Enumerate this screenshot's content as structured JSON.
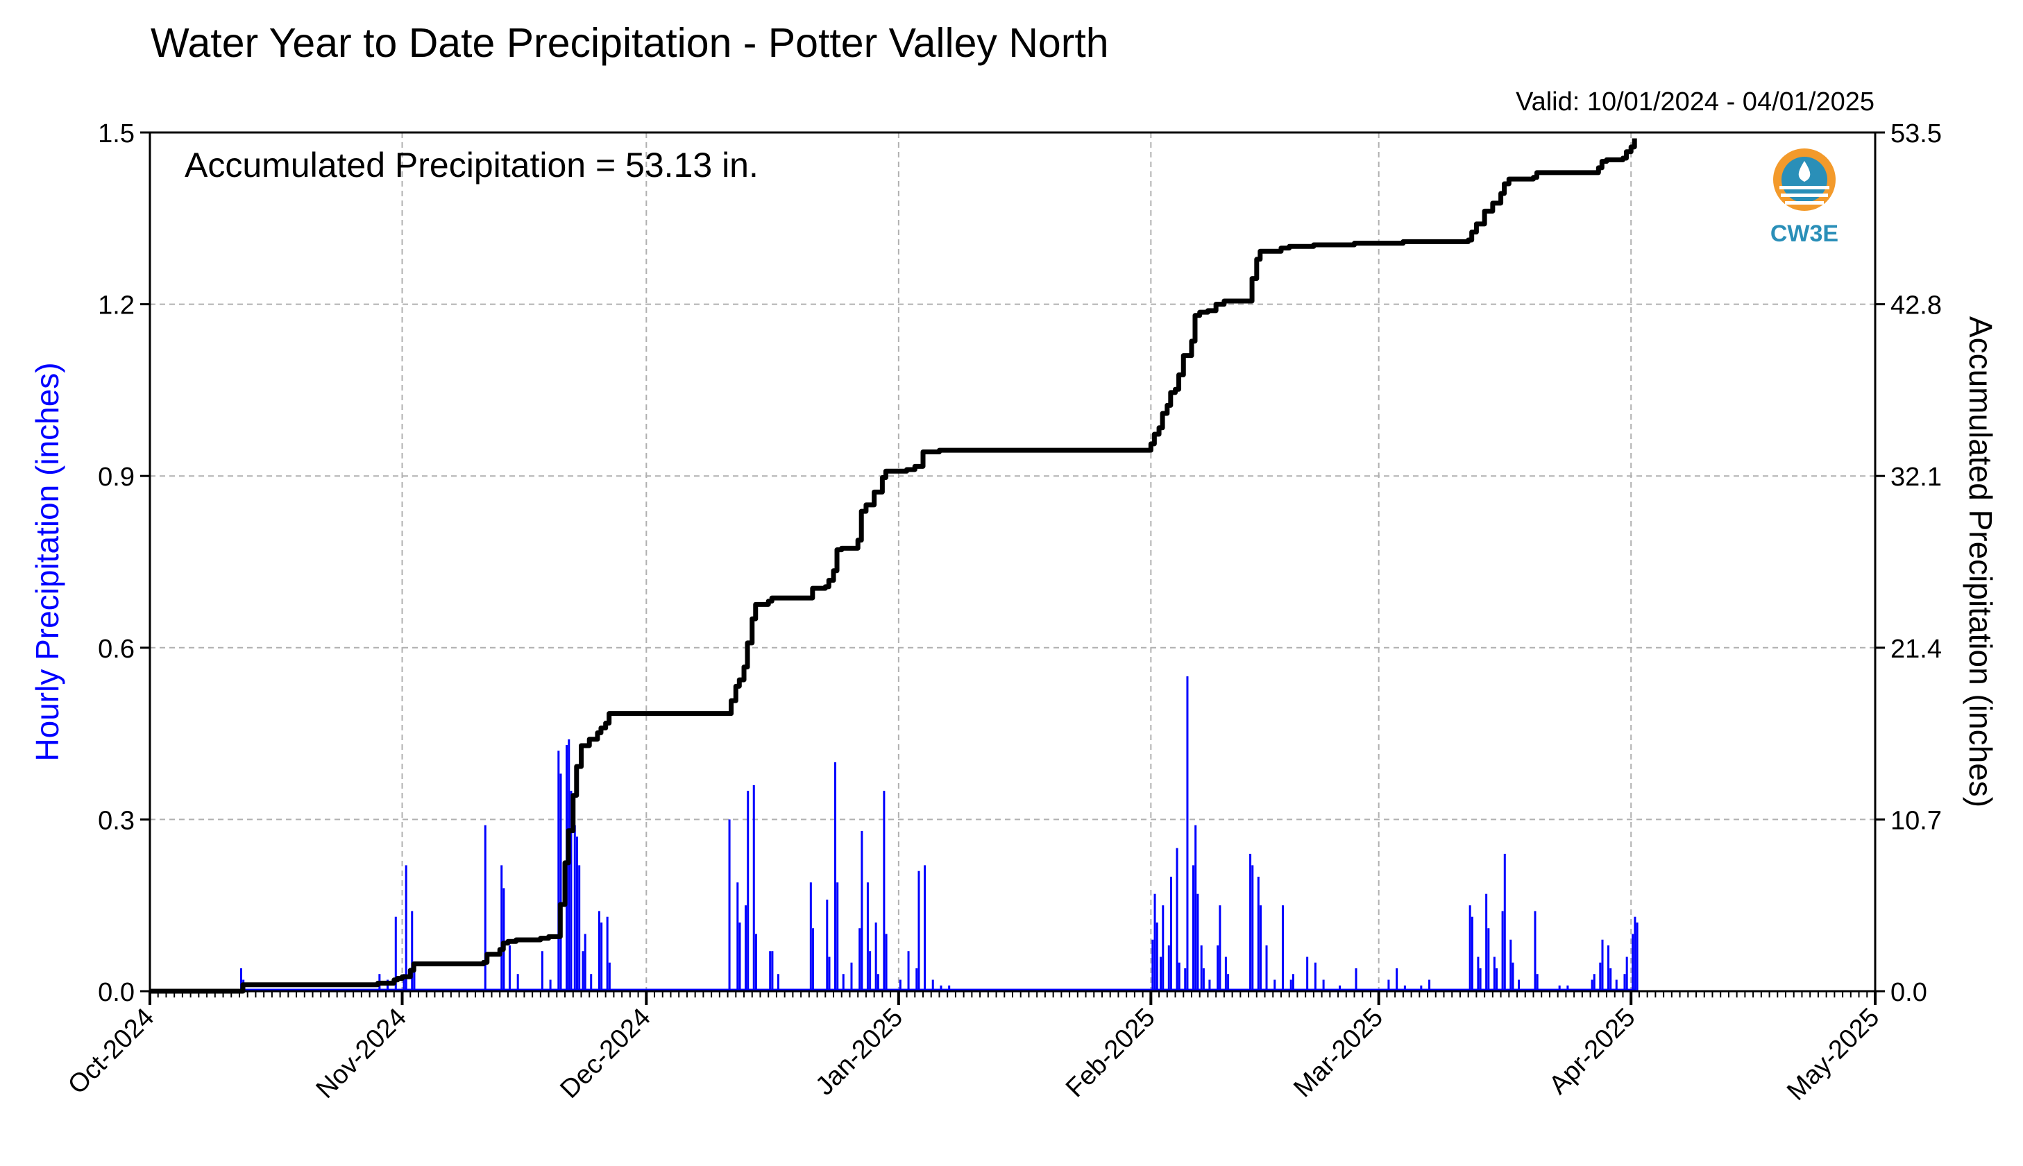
{
  "chart_data": {
    "type": "bar",
    "title": "Water Year to Date Precipitation - Potter Valley North",
    "subtitle": "Valid: 10/01/2024 - 04/01/2025",
    "annotation": "Accumulated Precipitation = 53.13 in.",
    "logo_text": "CW3E",
    "ylabel": "Hourly Precipitation (inches)",
    "y2label": "Accumulated Precipitation (inches)",
    "ylim": [
      0,
      1.5
    ],
    "y2lim": [
      0,
      53.5
    ],
    "yticks": [
      "0.0",
      "0.3",
      "0.6",
      "0.9",
      "1.2",
      "1.5"
    ],
    "y2ticks": [
      "0.0",
      "10.7",
      "21.4",
      "32.1",
      "42.8",
      "53.5"
    ],
    "x_start": "2024-10-01",
    "x_end": "2025-05-01",
    "month_labels": [
      "Oct-2024",
      "Nov-2024",
      "Dec-2024",
      "Jan-2025",
      "Feb-2025",
      "Mar-2025",
      "Apr-2025",
      "May-2025"
    ],
    "grid": true,
    "colors": {
      "hourly": "#0000ff",
      "accumulated": "#000000",
      "grid": "#b0b0b0",
      "logo_orange": "#f39a2b",
      "logo_blue": "#2a8fb8"
    },
    "series": [
      {
        "name": "Hourly Precipitation (inches)",
        "style": "bars",
        "points": [
          [
            "2024-10-12",
            0.04
          ],
          [
            "2024-10-12",
            0.02
          ],
          [
            "2024-10-29",
            0.03
          ],
          [
            "2024-10-30",
            0.02
          ],
          [
            "2024-10-31",
            0.13
          ],
          [
            "2024-11-01",
            0.03
          ],
          [
            "2024-11-01",
            0.22
          ],
          [
            "2024-11-02",
            0.14
          ],
          [
            "2024-11-02",
            0.05
          ],
          [
            "2024-11-11",
            0.29
          ],
          [
            "2024-11-13",
            0.22
          ],
          [
            "2024-11-13",
            0.18
          ],
          [
            "2024-11-14",
            0.08
          ],
          [
            "2024-11-15",
            0.03
          ],
          [
            "2024-11-18",
            0.07
          ],
          [
            "2024-11-19",
            0.02
          ],
          [
            "2024-11-20",
            0.42
          ],
          [
            "2024-11-20",
            0.38
          ],
          [
            "2024-11-21",
            0.43
          ],
          [
            "2024-11-21",
            0.44
          ],
          [
            "2024-11-21",
            0.35
          ],
          [
            "2024-11-22",
            0.29
          ],
          [
            "2024-11-22",
            0.27
          ],
          [
            "2024-11-22",
            0.22
          ],
          [
            "2024-11-23",
            0.07
          ],
          [
            "2024-11-23",
            0.1
          ],
          [
            "2024-11-24",
            0.03
          ],
          [
            "2024-11-25",
            0.14
          ],
          [
            "2024-11-25",
            0.12
          ],
          [
            "2024-11-26",
            0.13
          ],
          [
            "2024-11-26",
            0.05
          ],
          [
            "2024-12-11",
            0.3
          ],
          [
            "2024-12-12",
            0.19
          ],
          [
            "2024-12-12",
            0.12
          ],
          [
            "2024-12-13",
            0.15
          ],
          [
            "2024-12-13",
            0.35
          ],
          [
            "2024-12-14",
            0.36
          ],
          [
            "2024-12-14",
            0.1
          ],
          [
            "2024-12-16",
            0.07
          ],
          [
            "2024-12-16",
            0.07
          ],
          [
            "2024-12-17",
            0.03
          ],
          [
            "2024-12-21",
            0.19
          ],
          [
            "2024-12-21",
            0.11
          ],
          [
            "2024-12-23",
            0.16
          ],
          [
            "2024-12-23",
            0.06
          ],
          [
            "2024-12-24",
            0.4
          ],
          [
            "2024-12-24",
            0.19
          ],
          [
            "2024-12-25",
            0.03
          ],
          [
            "2024-12-26",
            0.05
          ],
          [
            "2024-12-27",
            0.11
          ],
          [
            "2024-12-27",
            0.28
          ],
          [
            "2024-12-28",
            0.19
          ],
          [
            "2024-12-28",
            0.07
          ],
          [
            "2024-12-29",
            0.12
          ],
          [
            "2024-12-29",
            0.03
          ],
          [
            "2024-12-30",
            0.35
          ],
          [
            "2024-12-30",
            0.1
          ],
          [
            "2025-01-01",
            0.02
          ],
          [
            "2025-01-02",
            0.07
          ],
          [
            "2025-01-03",
            0.04
          ],
          [
            "2025-01-03",
            0.21
          ],
          [
            "2025-01-04",
            0.22
          ],
          [
            "2025-01-05",
            0.02
          ],
          [
            "2025-01-06",
            0.01
          ],
          [
            "2025-01-07",
            0.01
          ],
          [
            "2025-02-01",
            0.09
          ],
          [
            "2025-02-01",
            0.17
          ],
          [
            "2025-02-01",
            0.12
          ],
          [
            "2025-02-02",
            0.06
          ],
          [
            "2025-02-02",
            0.15
          ],
          [
            "2025-02-03",
            0.08
          ],
          [
            "2025-02-03",
            0.2
          ],
          [
            "2025-02-04",
            0.25
          ],
          [
            "2025-02-04",
            0.05
          ],
          [
            "2025-02-05",
            0.04
          ],
          [
            "2025-02-05",
            0.55
          ],
          [
            "2025-02-06",
            0.22
          ],
          [
            "2025-02-06",
            0.29
          ],
          [
            "2025-02-06",
            0.17
          ],
          [
            "2025-02-07",
            0.08
          ],
          [
            "2025-02-07",
            0.04
          ],
          [
            "2025-02-08",
            0.02
          ],
          [
            "2025-02-09",
            0.08
          ],
          [
            "2025-02-09",
            0.15
          ],
          [
            "2025-02-10",
            0.06
          ],
          [
            "2025-02-10",
            0.03
          ],
          [
            "2025-02-13",
            0.24
          ],
          [
            "2025-02-13",
            0.22
          ],
          [
            "2025-02-14",
            0.2
          ],
          [
            "2025-02-14",
            0.15
          ],
          [
            "2025-02-15",
            0.08
          ],
          [
            "2025-02-16",
            0.02
          ],
          [
            "2025-02-17",
            0.15
          ],
          [
            "2025-02-18",
            0.02
          ],
          [
            "2025-02-18",
            0.03
          ],
          [
            "2025-02-20",
            0.06
          ],
          [
            "2025-02-21",
            0.05
          ],
          [
            "2025-02-22",
            0.02
          ],
          [
            "2025-02-24",
            0.01
          ],
          [
            "2025-02-26",
            0.04
          ],
          [
            "2025-03-02",
            0.02
          ],
          [
            "2025-03-03",
            0.04
          ],
          [
            "2025-03-04",
            0.01
          ],
          [
            "2025-03-06",
            0.01
          ],
          [
            "2025-03-07",
            0.02
          ],
          [
            "2025-03-12",
            0.15
          ],
          [
            "2025-03-12",
            0.13
          ],
          [
            "2025-03-13",
            0.06
          ],
          [
            "2025-03-13",
            0.04
          ],
          [
            "2025-03-14",
            0.17
          ],
          [
            "2025-03-14",
            0.11
          ],
          [
            "2025-03-15",
            0.06
          ],
          [
            "2025-03-15",
            0.04
          ],
          [
            "2025-03-16",
            0.14
          ],
          [
            "2025-03-16",
            0.24
          ],
          [
            "2025-03-17",
            0.09
          ],
          [
            "2025-03-17",
            0.05
          ],
          [
            "2025-03-18",
            0.02
          ],
          [
            "2025-03-20",
            0.14
          ],
          [
            "2025-03-20",
            0.03
          ],
          [
            "2025-03-23",
            0.01
          ],
          [
            "2025-03-24",
            0.01
          ],
          [
            "2025-03-27",
            0.02
          ],
          [
            "2025-03-27",
            0.03
          ],
          [
            "2025-03-28",
            0.05
          ],
          [
            "2025-03-28",
            0.09
          ],
          [
            "2025-03-29",
            0.08
          ],
          [
            "2025-03-29",
            0.04
          ],
          [
            "2025-03-30",
            0.02
          ],
          [
            "2025-03-31",
            0.03
          ],
          [
            "2025-03-31",
            0.06
          ],
          [
            "2025-04-01",
            0.1
          ],
          [
            "2025-04-01",
            0.13
          ],
          [
            "2025-04-01",
            0.12
          ]
        ]
      },
      {
        "name": "Accumulated Precipitation (inches)",
        "style": "line",
        "points": [
          [
            "2024-10-01",
            0
          ],
          [
            "2024-10-12",
            0.0
          ],
          [
            "2024-10-12",
            0.4
          ],
          [
            "2024-10-29",
            0.5
          ],
          [
            "2024-10-31",
            0.7
          ],
          [
            "2024-10-31",
            0.8
          ],
          [
            "2024-11-01",
            0.9
          ],
          [
            "2024-11-02",
            1.3
          ],
          [
            "2024-11-02",
            1.7
          ],
          [
            "2024-11-11",
            1.8
          ],
          [
            "2024-11-11",
            2.3
          ],
          [
            "2024-11-13",
            2.6
          ],
          [
            "2024-11-13",
            3.0
          ],
          [
            "2024-11-14",
            3.1
          ],
          [
            "2024-11-15",
            3.2
          ],
          [
            "2024-11-18",
            3.3
          ],
          [
            "2024-11-19",
            3.4
          ],
          [
            "2024-11-20",
            3.4
          ],
          [
            "2024-11-20",
            5.4
          ],
          [
            "2024-11-21",
            8.0
          ],
          [
            "2024-11-21",
            10.0
          ],
          [
            "2024-11-22",
            12.2
          ],
          [
            "2024-11-22",
            14.0
          ],
          [
            "2024-11-23",
            15.3
          ],
          [
            "2024-11-24",
            15.7
          ],
          [
            "2024-11-25",
            16.1
          ],
          [
            "2024-11-25",
            16.4
          ],
          [
            "2024-11-26",
            16.7
          ],
          [
            "2024-11-26",
            17.3
          ],
          [
            "2024-12-11",
            17.3
          ],
          [
            "2024-12-11",
            18.1
          ],
          [
            "2024-12-12",
            19.0
          ],
          [
            "2024-12-12",
            19.4
          ],
          [
            "2024-12-13",
            20.2
          ],
          [
            "2024-12-13",
            21.7
          ],
          [
            "2024-12-14",
            23.2
          ],
          [
            "2024-12-14",
            24.1
          ],
          [
            "2024-12-16",
            24.3
          ],
          [
            "2024-12-16",
            24.5
          ],
          [
            "2024-12-21",
            24.5
          ],
          [
            "2024-12-21",
            25.1
          ],
          [
            "2024-12-23",
            25.2
          ],
          [
            "2024-12-23",
            25.6
          ],
          [
            "2024-12-24",
            26.2
          ],
          [
            "2024-12-24",
            27.5
          ],
          [
            "2024-12-25",
            27.6
          ],
          [
            "2024-12-26",
            27.6
          ],
          [
            "2024-12-27",
            28.1
          ],
          [
            "2024-12-27",
            29.9
          ],
          [
            "2024-12-28",
            30.3
          ],
          [
            "2024-12-29",
            31.1
          ],
          [
            "2024-12-30",
            32.0
          ],
          [
            "2024-12-30",
            32.4
          ],
          [
            "2025-01-02",
            32.5
          ],
          [
            "2025-01-03",
            32.7
          ],
          [
            "2025-01-04",
            33.6
          ],
          [
            "2025-01-06",
            33.7
          ],
          [
            "2025-01-31",
            33.7
          ],
          [
            "2025-02-01",
            34.1
          ],
          [
            "2025-02-01",
            34.7
          ],
          [
            "2025-02-02",
            35.1
          ],
          [
            "2025-02-02",
            36.0
          ],
          [
            "2025-02-03",
            36.5
          ],
          [
            "2025-02-03",
            37.3
          ],
          [
            "2025-02-04",
            37.5
          ],
          [
            "2025-02-04",
            38.4
          ],
          [
            "2025-02-05",
            39.6
          ],
          [
            "2025-02-06",
            40.5
          ],
          [
            "2025-02-06",
            41.0
          ],
          [
            "2025-02-06",
            42.1
          ],
          [
            "2025-02-07",
            42.3
          ],
          [
            "2025-02-08",
            42.4
          ],
          [
            "2025-02-09",
            42.8
          ],
          [
            "2025-02-10",
            43.0
          ],
          [
            "2025-02-13",
            43.0
          ],
          [
            "2025-02-13",
            44.4
          ],
          [
            "2025-02-14",
            45.6
          ],
          [
            "2025-02-14",
            46.1
          ],
          [
            "2025-02-16",
            46.1
          ],
          [
            "2025-02-17",
            46.3
          ],
          [
            "2025-02-18",
            46.4
          ],
          [
            "2025-02-21",
            46.5
          ],
          [
            "2025-02-26",
            46.6
          ],
          [
            "2025-03-04",
            46.7
          ],
          [
            "2025-03-12",
            46.8
          ],
          [
            "2025-03-12",
            47.3
          ],
          [
            "2025-03-13",
            47.8
          ],
          [
            "2025-03-14",
            48.6
          ],
          [
            "2025-03-15",
            49.1
          ],
          [
            "2025-03-16",
            49.7
          ],
          [
            "2025-03-16",
            50.3
          ],
          [
            "2025-03-17",
            50.6
          ],
          [
            "2025-03-20",
            50.7
          ],
          [
            "2025-03-20",
            51.0
          ],
          [
            "2025-03-27",
            51.0
          ],
          [
            "2025-03-28",
            51.3
          ],
          [
            "2025-03-28",
            51.7
          ],
          [
            "2025-03-29",
            51.8
          ],
          [
            "2025-03-31",
            51.9
          ],
          [
            "2025-03-31",
            52.3
          ],
          [
            "2025-04-01",
            52.6
          ],
          [
            "2025-04-01",
            53.13
          ]
        ]
      }
    ]
  }
}
